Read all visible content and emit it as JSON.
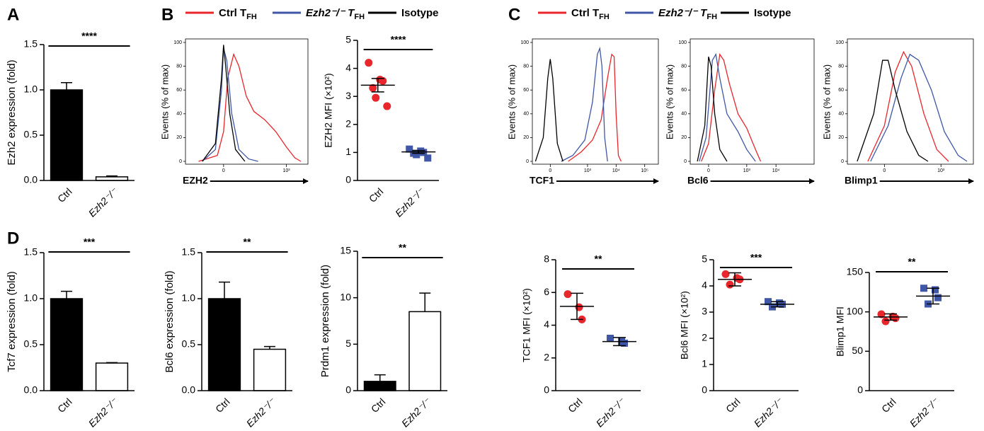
{
  "chart_data": [
    {
      "type": "bar",
      "panel": "A",
      "ylabel": "Ezh2 expression (fold)",
      "categories": [
        "Ctrl",
        "Ezh2⁻/⁻"
      ],
      "values": [
        1.0,
        0.04
      ],
      "errors": [
        0.08,
        0.01
      ],
      "colors": [
        "#000000",
        "#ffffff"
      ],
      "ylim": [
        0,
        1.5
      ],
      "yticks": [
        {
          "value": 0,
          "label": "0.0"
        },
        {
          "value": 0.5,
          "label": "0.5"
        },
        {
          "value": 1,
          "label": "1.0"
        },
        {
          "value": 1.5,
          "label": "1.5"
        }
      ],
      "significance": "****"
    },
    {
      "type": "line",
      "panel": "B",
      "xscale": "biexponential",
      "legend": true,
      "ylabel": "Events (% of max)",
      "xlabel": "EZH2",
      "xlim": [
        -300,
        2800
      ],
      "ylim": [
        0,
        100
      ],
      "xticks": [
        0,
        {
          "value": 1000,
          "label": "10³"
        }
      ],
      "yticks": [
        0,
        20,
        40,
        60,
        80,
        100
      ],
      "series": [
        {
          "name": "Ctrl T",
          "subscript": "FH",
          "color": "#e8262b",
          "x": [
            -150,
            -30,
            0,
            20,
            50,
            80,
            130,
            200,
            350,
            600,
            1000,
            1500,
            2000
          ],
          "values": [
            0,
            5,
            25,
            70,
            90,
            80,
            55,
            42,
            35,
            25,
            12,
            3,
            0
          ]
        },
        {
          "name": "Ezh2⁻/⁻ T",
          "subscript": "FH",
          "color": "#3f57a6",
          "x": [
            -120,
            -40,
            -10,
            0,
            15,
            40,
            80,
            150,
            250
          ],
          "values": [
            0,
            10,
            60,
            95,
            85,
            40,
            10,
            2,
            0
          ]
        },
        {
          "name": "Isotype",
          "color": "#000000",
          "x": [
            -120,
            -40,
            -10,
            0,
            10,
            30,
            60,
            120
          ],
          "values": [
            0,
            15,
            70,
            98,
            80,
            40,
            10,
            0
          ]
        }
      ]
    },
    {
      "type": "dot",
      "ylabel": "EZH2 MFI (×10²)",
      "categories": [
        "Ctrl",
        "Ezh2⁻/⁻"
      ],
      "points": [
        [
          4.2,
          3.6,
          3.55,
          3.3,
          2.95,
          2.65
        ],
        [
          1.12,
          1.05,
          1.0,
          0.97,
          0.92,
          0.8
        ]
      ],
      "means": [
        3.4,
        1.02
      ],
      "errors": [
        0.24,
        0.05
      ],
      "colors": [
        "#e8262b",
        "#3f57a6"
      ],
      "markers": [
        "circle",
        "square"
      ],
      "ylim": [
        0,
        5
      ],
      "yticks": [
        0,
        1,
        2,
        3,
        4,
        5
      ],
      "significance": "****"
    },
    {
      "type": "line",
      "panel": "C",
      "xscale": "biexponential",
      "legend": true,
      "ylabel": "Events (% of max)",
      "xlabel": "TCF1",
      "xlim": [
        -200,
        300000
      ],
      "ylim": [
        0,
        100
      ],
      "xticks": [
        0,
        {
          "value": 1000,
          "label": "10³"
        },
        {
          "value": 10000,
          "label": "10⁴"
        },
        {
          "value": 100000,
          "label": "10⁵"
        }
      ],
      "yticks": [
        0,
        20,
        40,
        60,
        80,
        100
      ],
      "series": [
        {
          "name": "Ctrl T",
          "subscript": "FH",
          "color": "#e8262b",
          "x": [
            200,
            600,
            1500,
            3000,
            5000,
            7000,
            8500,
            10000,
            12000,
            15000
          ],
          "values": [
            0,
            8,
            18,
            35,
            70,
            90,
            88,
            40,
            5,
            0
          ]
        },
        {
          "name": "Ezh2⁻/⁻ T",
          "subscript": "FH",
          "color": "#3f57a6",
          "x": [
            100,
            300,
            800,
            1500,
            2200,
            2700,
            3200,
            4000,
            5000
          ],
          "values": [
            0,
            5,
            18,
            50,
            90,
            95,
            80,
            20,
            0
          ]
        },
        {
          "name": "Isotype",
          "color": "#000000",
          "x": [
            -150,
            -60,
            -20,
            0,
            20,
            60,
            120
          ],
          "values": [
            0,
            20,
            70,
            86,
            70,
            15,
            0
          ]
        }
      ]
    },
    {
      "type": "line",
      "xscale": "biexponential",
      "ylabel": "Events (% of max)",
      "xlabel": "Bcl6",
      "xlim": [
        -200,
        200000
      ],
      "ylim": [
        0,
        100
      ],
      "xticks": [
        0,
        {
          "value": 1000,
          "label": "10³"
        },
        {
          "value": 10000,
          "label": "10⁴"
        }
      ],
      "yticks": [
        0,
        20,
        40,
        60,
        80,
        100
      ],
      "series": [
        {
          "color": "#e8262b",
          "x": [
            -60,
            0,
            50,
            100,
            150,
            250,
            500,
            1000,
            2000,
            3000
          ],
          "values": [
            0,
            15,
            60,
            90,
            85,
            65,
            40,
            28,
            10,
            0
          ]
        },
        {
          "color": "#3f57a6",
          "x": [
            -80,
            -20,
            30,
            60,
            100,
            200,
            500,
            1000,
            2000
          ],
          "values": [
            0,
            20,
            85,
            90,
            70,
            40,
            25,
            10,
            0
          ]
        },
        {
          "color": "#000000",
          "x": [
            -100,
            -30,
            0,
            20,
            50,
            100,
            200
          ],
          "values": [
            0,
            30,
            88,
            80,
            40,
            10,
            0
          ]
        }
      ]
    },
    {
      "type": "line",
      "xscale": "biexponential",
      "ylabel": "Events (% of max)",
      "xlabel": "Blimp1",
      "xlim": [
        -350,
        5600
      ],
      "ylim": [
        0,
        100
      ],
      "xticks": [
        0,
        {
          "value": 1000,
          "label": "10³"
        }
      ],
      "yticks": [
        0,
        20,
        40,
        60,
        80,
        100
      ],
      "series": [
        {
          "color": "#e8262b",
          "x": [
            -100,
            0,
            60,
            120,
            200,
            400,
            800,
            1500
          ],
          "values": [
            0,
            30,
            75,
            92,
            80,
            40,
            10,
            0
          ]
        },
        {
          "color": "#3f57a6",
          "x": [
            -80,
            20,
            100,
            180,
            300,
            600,
            1200,
            2500,
            4000
          ],
          "values": [
            0,
            30,
            70,
            90,
            85,
            60,
            25,
            5,
            0
          ]
        },
        {
          "color": "#000000",
          "x": [
            -200,
            -60,
            -10,
            20,
            60,
            150,
            300,
            500
          ],
          "values": [
            0,
            40,
            85,
            85,
            60,
            25,
            5,
            0
          ]
        }
      ]
    },
    {
      "type": "bar",
      "panel": "D",
      "ylabel": "Tcf7 expression (fold)",
      "categories": [
        "Ctrl",
        "Ezh2⁻/⁻"
      ],
      "values": [
        1.0,
        0.3
      ],
      "errors": [
        0.08,
        0.005
      ],
      "colors": [
        "#000000",
        "#ffffff"
      ],
      "ylim": [
        0,
        1.5
      ],
      "yticks": [
        {
          "value": 0,
          "label": "0.0"
        },
        {
          "value": 0.5,
          "label": "0.5"
        },
        {
          "value": 1,
          "label": "1.0"
        },
        {
          "value": 1.5,
          "label": "1.5"
        }
      ],
      "significance": "***"
    },
    {
      "type": "bar",
      "ylabel": "Bcl6 expression (fold)",
      "categories": [
        "Ctrl",
        "Ezh2⁻/⁻"
      ],
      "values": [
        1.0,
        0.45
      ],
      "errors": [
        0.18,
        0.03
      ],
      "colors": [
        "#000000",
        "#ffffff"
      ],
      "ylim": [
        0,
        1.5
      ],
      "yticks": [
        {
          "value": 0,
          "label": "0.0"
        },
        {
          "value": 0.5,
          "label": "0.5"
        },
        {
          "value": 1,
          "label": "1.0"
        },
        {
          "value": 1.5,
          "label": "1.5"
        }
      ],
      "significance": "**"
    },
    {
      "type": "bar",
      "ylabel": "Prdm1 expression (fold)",
      "categories": [
        "Ctrl",
        "Ezh2⁻/⁻"
      ],
      "values": [
        1.0,
        8.5
      ],
      "errors": [
        0.7,
        2.0
      ],
      "colors": [
        "#000000",
        "#ffffff"
      ],
      "ylim": [
        0,
        15
      ],
      "yticks": [
        0,
        5,
        10,
        15
      ],
      "significance": "**"
    },
    {
      "type": "dot",
      "ylabel": "TCF1 MFI (×10²)",
      "categories": [
        "Ctrl",
        "Ezh2⁻/⁻"
      ],
      "points": [
        [
          5.9,
          5.1,
          4.35
        ],
        [
          3.2,
          3.0,
          2.9
        ]
      ],
      "means": [
        5.15,
        3.0
      ],
      "errors": [
        0.8,
        0.25
      ],
      "colors": [
        "#e8262b",
        "#3f57a6"
      ],
      "markers": [
        "circle",
        "square"
      ],
      "ylim": [
        0,
        8
      ],
      "yticks": [
        0,
        2,
        4,
        6,
        8
      ],
      "significance": "**"
    },
    {
      "type": "dot",
      "ylabel": "Bcl6 MFI (×10²)",
      "categories": [
        "Ctrl",
        "Ezh2⁻/⁻"
      ],
      "points": [
        [
          4.45,
          4.3,
          4.25,
          4.05
        ],
        [
          3.4,
          3.35,
          3.3,
          3.2
        ]
      ],
      "means": [
        4.25,
        3.3
      ],
      "errors": [
        0.25,
        0.1
      ],
      "colors": [
        "#e8262b",
        "#3f57a6"
      ],
      "markers": [
        "circle",
        "square"
      ],
      "ylim": [
        0,
        5
      ],
      "yticks": [
        0,
        1,
        2,
        3,
        4,
        5
      ],
      "significance": "***"
    },
    {
      "type": "dot",
      "ylabel": "Blimp1 MFI",
      "categories": [
        "Ctrl",
        "Ezh2⁻/⁻"
      ],
      "points": [
        [
          97,
          94,
          92,
          88
        ],
        [
          130,
          128,
          118,
          110
        ]
      ],
      "means": [
        93.5,
        120
      ],
      "errors": [
        4,
        10
      ],
      "colors": [
        "#e8262b",
        "#3f57a6"
      ],
      "markers": [
        "circle",
        "square"
      ],
      "ylim": [
        0,
        150
      ],
      "yticks": [
        0,
        50,
        100,
        150
      ],
      "significance": "**"
    }
  ]
}
